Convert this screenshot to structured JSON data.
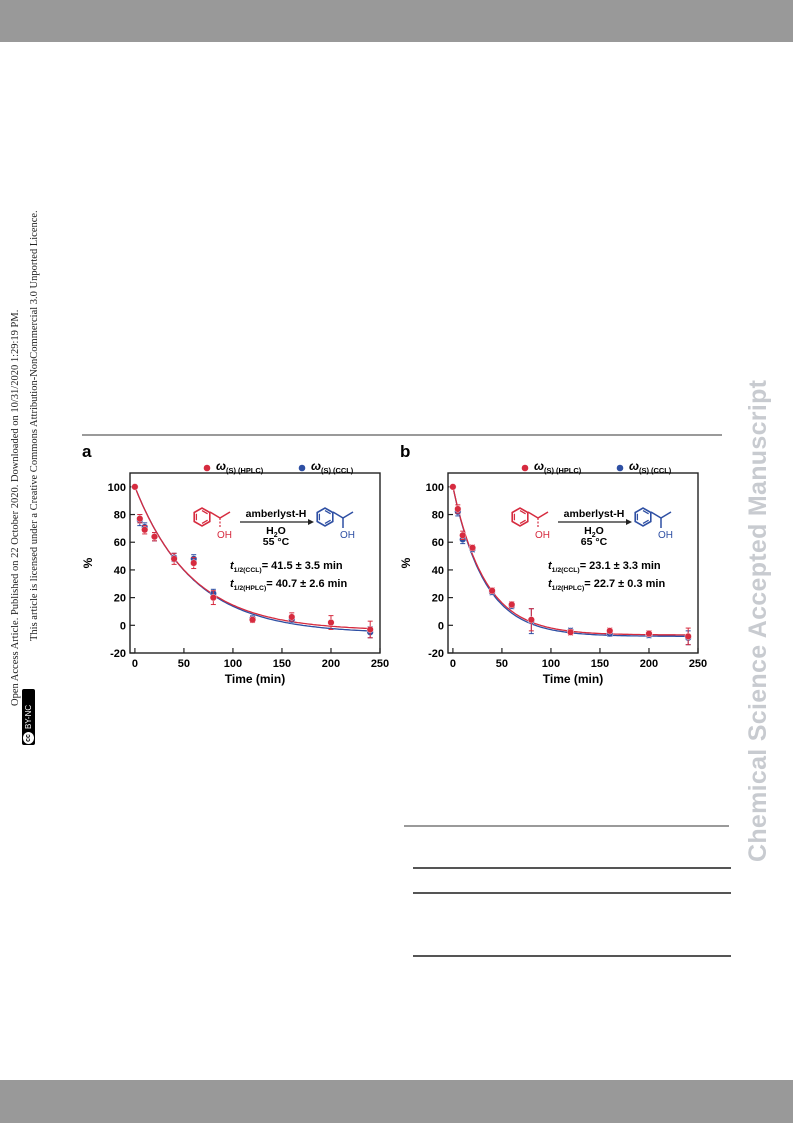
{
  "side_notice": {
    "line1": "Open Access Article. Published on 22 October 2020. Downloaded on 10/31/2020 1:29:19 PM.",
    "line2": "This article is licensed under a Creative Commons Attribution-NonCommercial 3.0 Unported Licence.",
    "badge": "BY-NC",
    "badge_icon": "cc"
  },
  "watermark": "Chemical Science Accepted Manuscript",
  "colors": {
    "hplc": "#d62b3f",
    "ccl": "#2e4fa3",
    "bar": "#999999"
  },
  "chart_data": [
    {
      "panel_label": "a",
      "type": "scatter",
      "xlabel": "Time (min)",
      "ylabel": "%",
      "xlim": [
        -5,
        250
      ],
      "ylim": [
        -20,
        110
      ],
      "xticks": [
        "0",
        "50",
        "100",
        "150",
        "200",
        "250"
      ],
      "yticks": [
        "-20",
        "0",
        "20",
        "40",
        "60",
        "80",
        "100"
      ],
      "legend": [
        {
          "symbol": "ω",
          "sub": "(S) (HPLC)"
        },
        {
          "symbol": "ω",
          "sub": "(S) (CCL)"
        }
      ],
      "scheme": {
        "reagent": "amberlyst-H",
        "solvent": "H",
        "solvent_sub": "2",
        "solvent_end": "O",
        "temperature": "55 °C",
        "oh_left": "OH",
        "oh_right": "OH"
      },
      "annotations": [
        {
          "t": "t",
          "sub": "1/2(CCL)",
          "text": "= 41.5 ± 3.5 min"
        },
        {
          "t": "t",
          "sub": "1/2(HPLC)",
          "text": "= 40.7 ± 2.6 min"
        }
      ],
      "series": [
        {
          "name": "ω(S) (HPLC)",
          "x": [
            0,
            5,
            10,
            20,
            40,
            60,
            80,
            120,
            160,
            200,
            240
          ],
          "y": [
            100,
            77,
            69,
            64,
            48,
            45,
            20,
            4,
            6,
            2,
            -3
          ],
          "err": [
            0,
            3,
            3,
            3,
            4,
            4,
            5,
            2,
            3,
            5,
            6
          ]
        },
        {
          "name": "ω(S) (CCL)",
          "x": [
            0,
            5,
            10,
            20,
            40,
            60,
            80,
            120,
            160,
            240
          ],
          "y": [
            100,
            76,
            71,
            64,
            49,
            48,
            23,
            5,
            4,
            -5
          ],
          "err": [
            0,
            4,
            3,
            3,
            3,
            3,
            3,
            2,
            2,
            4
          ]
        }
      ],
      "fit": {
        "hplc": {
          "a": 104,
          "k": 0.0172,
          "c": -4
        },
        "ccl": {
          "a": 106,
          "k": 0.0168,
          "c": -6
        }
      }
    },
    {
      "panel_label": "b",
      "type": "scatter",
      "xlabel": "Time (min)",
      "ylabel": "%",
      "xlim": [
        -5,
        250
      ],
      "ylim": [
        -20,
        110
      ],
      "xticks": [
        "0",
        "50",
        "100",
        "150",
        "200",
        "250"
      ],
      "yticks": [
        "-20",
        "0",
        "20",
        "40",
        "60",
        "80",
        "100"
      ],
      "legend": [
        {
          "symbol": "ω",
          "sub": "(S) (HPLC)"
        },
        {
          "symbol": "ω",
          "sub": "(S) (CCL)"
        }
      ],
      "scheme": {
        "reagent": "amberlyst-H",
        "solvent": "H",
        "solvent_sub": "2",
        "solvent_end": "O",
        "temperature": "65 °C",
        "oh_left": "OH",
        "oh_right": "OH"
      },
      "annotations": [
        {
          "t": "t",
          "sub": "1/2(CCL)",
          "text": "= 23.1 ± 3.3 min"
        },
        {
          "t": "t",
          "sub": "1/2(HPLC)",
          "text": "= 22.7 ± 0.3 min"
        }
      ],
      "series": [
        {
          "name": "ω(S) (HPLC)",
          "x": [
            0,
            5,
            10,
            20,
            40,
            60,
            80,
            120,
            160,
            200,
            240
          ],
          "y": [
            100,
            84,
            65,
            56,
            25,
            15,
            4,
            -5,
            -4,
            -6,
            -8
          ],
          "err": [
            0,
            3,
            3,
            2,
            2,
            2,
            8,
            2,
            2,
            2,
            6
          ]
        },
        {
          "name": "ω(S) (CCL)",
          "x": [
            5,
            10,
            20,
            40,
            60,
            80,
            120,
            160,
            200,
            240
          ],
          "y": [
            82,
            62,
            55,
            24,
            14,
            3,
            -4,
            -6,
            -7,
            -9
          ],
          "err": [
            3,
            3,
            2,
            2,
            2,
            9,
            2,
            2,
            2,
            5
          ]
        }
      ],
      "fit": {
        "hplc": {
          "a": 107,
          "k": 0.0305,
          "c": -7
        },
        "ccl": {
          "a": 108,
          "k": 0.031,
          "c": -8
        }
      }
    }
  ]
}
